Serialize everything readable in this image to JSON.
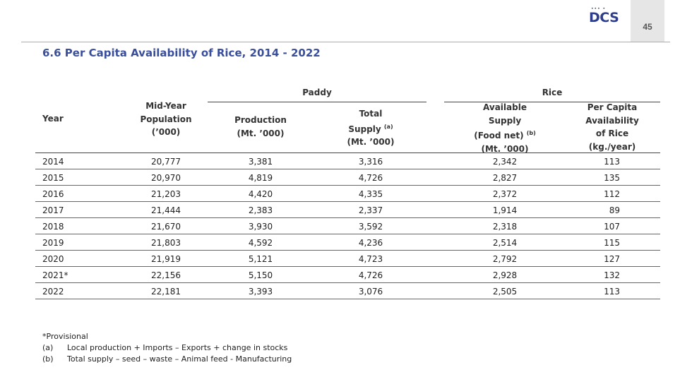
{
  "logo": {
    "text": "DCS",
    "dots": "••• •"
  },
  "page_number": "45",
  "title": "6.6 Per Capita Availability of Rice, 2014 - 2022",
  "table": {
    "group_headers": {
      "paddy": "Paddy",
      "rice": "Rice"
    },
    "columns": {
      "year": [
        "Year"
      ],
      "population": [
        "Mid-Year",
        "Population",
        "(’000)"
      ],
      "production": [
        "Production",
        "(Mt. ’000)"
      ],
      "total_supply": [
        "Total",
        "Supply",
        "(Mt. ’000)"
      ],
      "total_supply_note": "(a)",
      "available_supply": [
        "Available",
        "Supply",
        "(Food  net)",
        "(Mt. ’000)"
      ],
      "available_supply_note": "(b)",
      "per_capita": [
        "Per Capita",
        "Availability",
        "of Rice",
        "(kg./year)"
      ]
    },
    "rows": [
      {
        "year": "2014",
        "population": "20,777",
        "production": "3,381",
        "total_supply": "3,316",
        "available_supply": "2,342",
        "per_capita": "113"
      },
      {
        "year": "2015",
        "population": "20,970",
        "production": "4,819",
        "total_supply": "4,726",
        "available_supply": "2,827",
        "per_capita": "135"
      },
      {
        "year": "2016",
        "population": "21,203",
        "production": "4,420",
        "total_supply": "4,335",
        "available_supply": "2,372",
        "per_capita": "112"
      },
      {
        "year": "2017",
        "population": "21,444",
        "production": "2,383",
        "total_supply": "2,337",
        "available_supply": "1,914",
        "per_capita": "89"
      },
      {
        "year": "2018",
        "population": "21,670",
        "production": "3,930",
        "total_supply": "3,592",
        "available_supply": "2,318",
        "per_capita": "107"
      },
      {
        "year": "2019",
        "population": "21,803",
        "production": "4,592",
        "total_supply": "4,236",
        "available_supply": "2,514",
        "per_capita": "115"
      },
      {
        "year": "2020",
        "population": "21,919",
        "production": "5,121",
        "total_supply": "4,723",
        "available_supply": "2,792",
        "per_capita": "127"
      },
      {
        "year": "2021*",
        "population": "22,156",
        "production": "5,150",
        "total_supply": "4,726",
        "available_supply": "2,928",
        "per_capita": "132"
      },
      {
        "year": "2022",
        "population": "22,181",
        "production": "3,393",
        "total_supply": "3,076",
        "available_supply": "2,505",
        "per_capita": "113"
      }
    ]
  },
  "notes": {
    "provisional": "*Provisional",
    "items": [
      {
        "tag": "(a)",
        "text": "Local production + Imports – Exports + change in stocks"
      },
      {
        "tag": "(b)",
        "text": "Total supply – seed – waste – Animal feed - Manufacturing"
      }
    ]
  }
}
